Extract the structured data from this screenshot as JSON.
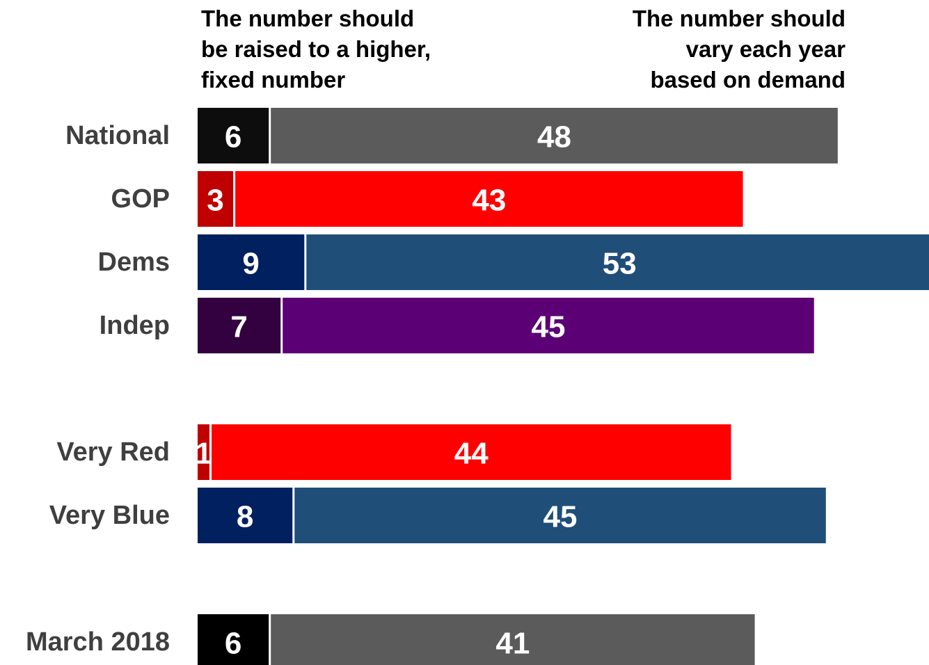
{
  "chart_data": {
    "type": "bar",
    "orientation": "horizontal",
    "stacked": true,
    "series": [
      {
        "name": "The number should be raised to a higher, fixed number",
        "name_lines": [
          "The number should",
          "be raised to a higher,",
          "fixed number"
        ]
      },
      {
        "name": "The number should vary each year based on demand",
        "name_lines": [
          "The number should",
          "vary each year",
          "based on demand"
        ]
      }
    ],
    "rows": [
      {
        "label": "National",
        "values": [
          6,
          48
        ],
        "colors": [
          "#0d0d0d",
          "#5b5b5b"
        ]
      },
      {
        "label": "GOP",
        "values": [
          3,
          43
        ],
        "colors": [
          "#c00000",
          "#ff0000"
        ]
      },
      {
        "label": "Dems",
        "values": [
          9,
          53
        ],
        "colors": [
          "#002060",
          "#1f4e79"
        ]
      },
      {
        "label": "Indep",
        "values": [
          7,
          45
        ],
        "colors": [
          "#330040",
          "#5c0075"
        ]
      },
      {
        "label": "Very Red",
        "values": [
          1,
          44
        ],
        "colors": [
          "#c00000",
          "#ff0000"
        ]
      },
      {
        "label": "Very Blue",
        "values": [
          8,
          45
        ],
        "colors": [
          "#002060",
          "#1f4e79"
        ]
      },
      {
        "label": "March 2018",
        "values": [
          6,
          41
        ],
        "colors": [
          "#000000",
          "#5b5b5b"
        ]
      }
    ],
    "groups": [
      [
        0,
        1,
        2,
        3
      ],
      [
        4,
        5
      ],
      [
        6
      ]
    ],
    "xlim": [
      0,
      61.7
    ],
    "legend": "top",
    "grid": false
  }
}
